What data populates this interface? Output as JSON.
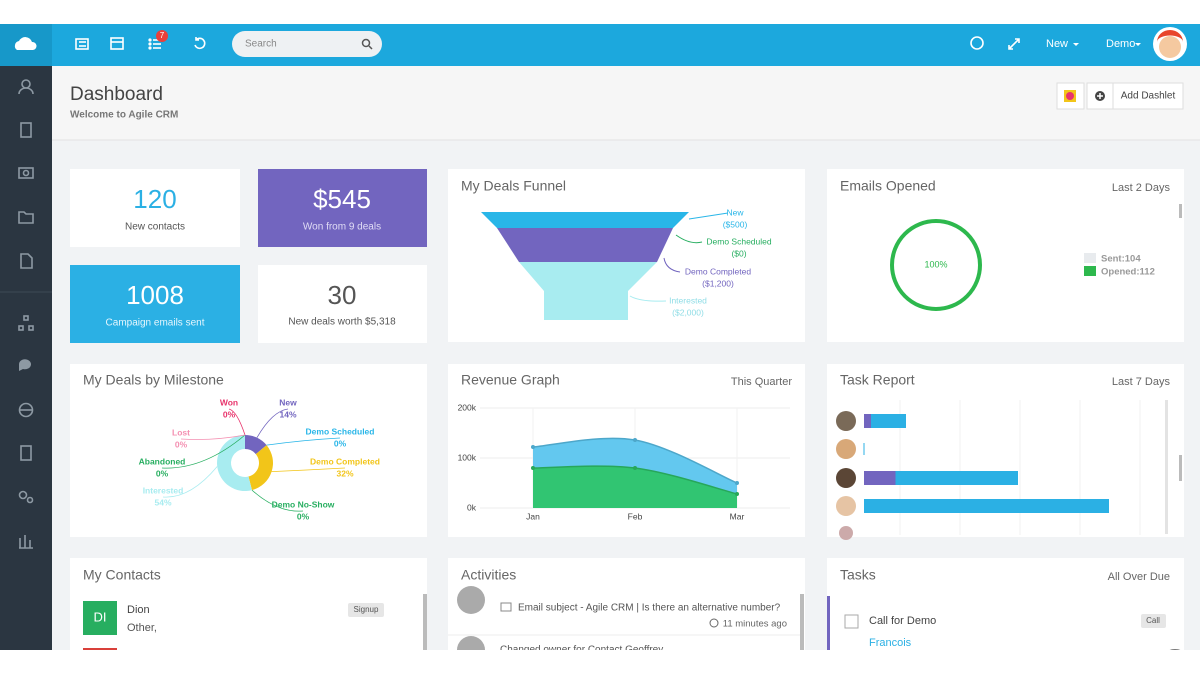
{
  "navbar": {
    "notification_count": "7",
    "search_placeholder": "Search",
    "new_menu": "New",
    "user_menu": "Demo"
  },
  "header": {
    "title": "Dashboard",
    "subtitle": "Welcome to Agile CRM",
    "add_dashlet": "Add Dashlet"
  },
  "stats": [
    {
      "value": "120",
      "label": "New contacts"
    },
    {
      "value": "$545",
      "label": "Won from 9 deals"
    },
    {
      "value": "1008",
      "label": "Campaign emails sent"
    },
    {
      "value": "30",
      "label": "New deals worth $5,318"
    }
  ],
  "deals_funnel": {
    "title": "My Deals Funnel",
    "stages": [
      {
        "name": "New",
        "amount": "($500)"
      },
      {
        "name": "Demo Scheduled",
        "amount": "($0)"
      },
      {
        "name": "Demo Completed",
        "amount": "($1,200)"
      },
      {
        "name": "Interested",
        "amount": "($2,000)"
      }
    ]
  },
  "emails_opened": {
    "title": "Emails Opened",
    "period": "Last 2 Days",
    "rate": "100%",
    "legend": [
      "Sent:104",
      "Opened:112"
    ]
  },
  "deals_by_milestone": {
    "title": "My Deals by Milestone",
    "type": "pie",
    "categories": [
      "Won",
      "New",
      "Demo Scheduled",
      "Demo Completed",
      "Demo No-Show",
      "Interested",
      "Abandoned",
      "Lost"
    ],
    "values": [
      0,
      14,
      0,
      32,
      0,
      54,
      0,
      0
    ],
    "value_labels": [
      "0%",
      "14%",
      "0%",
      "32%",
      "0%",
      "54%",
      "0%",
      "0%"
    ],
    "colors": [
      "#e8336b",
      "#7265bf",
      "#29b6e8",
      "#f2c519",
      "#27ae60",
      "#a8ecf0",
      "#27ae60",
      "#f48fb1"
    ]
  },
  "revenue": {
    "title": "Revenue Graph",
    "period": "This Quarter",
    "type": "area",
    "categories": [
      "Jan",
      "Feb",
      "Mar"
    ],
    "ylim": [
      0,
      200000
    ],
    "yticks": [
      {
        "value": 0,
        "label": "0k"
      },
      {
        "value": 100000,
        "label": "100k"
      },
      {
        "value": 200000,
        "label": "200k"
      }
    ],
    "series": [
      {
        "color": "#5bc5ee",
        "values": [
          122000,
          136000,
          50000
        ]
      },
      {
        "color": "#2ec56a",
        "values": [
          80000,
          80000,
          28000
        ]
      }
    ]
  },
  "task_report": {
    "title": "Task Report",
    "period": "Last 7 Days",
    "type": "bar",
    "xlim": [
      0,
      40
    ],
    "series": [
      {
        "color": "#7265bf",
        "values": [
          1,
          0,
          4.5,
          0
        ]
      },
      {
        "color": "#2bb0e4",
        "values": [
          5,
          0,
          17.5,
          35
        ]
      }
    ]
  },
  "contacts": {
    "title": "My Contacts",
    "items": [
      {
        "initials": "DI",
        "name": "Dion",
        "company": "Other,",
        "tag": "Signup"
      }
    ]
  },
  "activities": {
    "title": "Activities",
    "items": [
      {
        "text": "Email subject - Agile CRM | Is there an alternative number?",
        "time": "11 minutes ago"
      },
      {
        "text": "Changed owner for Contact Geoffrey"
      }
    ]
  },
  "tasks": {
    "title": "Tasks",
    "period": "All Over Due",
    "items": [
      {
        "name": "Call for Demo",
        "tag": "Call",
        "contact": "Francois"
      }
    ]
  }
}
